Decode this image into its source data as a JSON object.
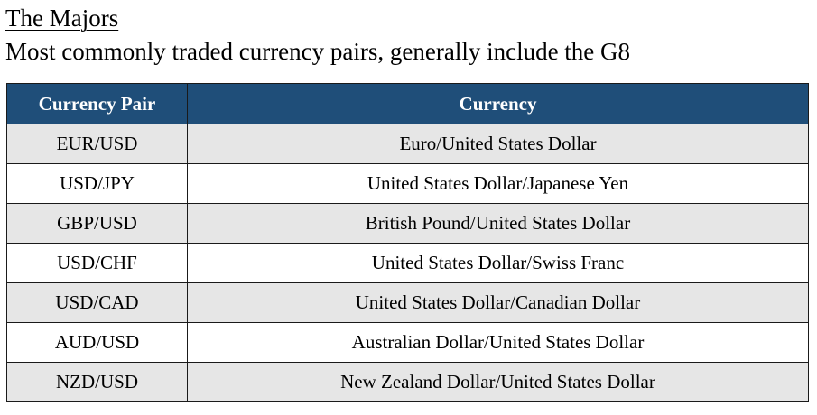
{
  "heading": {
    "title": "The Majors",
    "subtitle": "Most commonly traded currency pairs, generally include the G8"
  },
  "table": {
    "columns": [
      "Currency Pair",
      "Currency"
    ],
    "rows": [
      {
        "pair": "EUR/USD",
        "currency": "Euro/United States Dollar"
      },
      {
        "pair": "USD/JPY",
        "currency": "United States Dollar/Japanese Yen"
      },
      {
        "pair": "GBP/USD",
        "currency": "British Pound/United States Dollar"
      },
      {
        "pair": "USD/CHF",
        "currency": "United States Dollar/Swiss Franc"
      },
      {
        "pair": "USD/CAD",
        "currency": "United States Dollar/Canadian Dollar"
      },
      {
        "pair": "AUD/USD",
        "currency": "Australian Dollar/United States Dollar"
      },
      {
        "pair": "NZD/USD",
        "currency": "New Zealand Dollar/United States Dollar"
      }
    ]
  },
  "colors": {
    "header_bg": "#1f4e79",
    "header_text": "#ffffff",
    "shaded_row_bg": "#e6e6e6",
    "plain_row_bg": "#ffffff"
  }
}
